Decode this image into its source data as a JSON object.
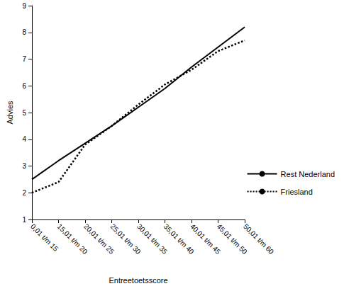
{
  "chart_data": {
    "type": "line",
    "x_label": "Entreetoetsscore",
    "y_label": "Advies",
    "categories": [
      "0,01 t/m 15",
      "15,01 t/m 20",
      "20,01 t/m 25",
      "25,01 t/m 30",
      "30,01 t/m 35",
      "35,01 t/m 40",
      "40,01 t/m 45",
      "45,01 t/m 50",
      "50,01 t/m 60"
    ],
    "series": [
      {
        "name": "Rest Nederland",
        "color": "#000000",
        "line_style": "solid",
        "values": [
          2.5,
          3.2,
          3.85,
          4.5,
          5.2,
          5.9,
          6.7,
          7.45,
          8.2
        ]
      },
      {
        "name": "Friesland",
        "color": "#000000",
        "line_style": "dotted",
        "values": [
          2.0,
          2.4,
          3.8,
          4.5,
          5.3,
          6.05,
          6.6,
          7.3,
          7.7
        ]
      }
    ],
    "ylim": [
      1,
      9
    ],
    "yticks": [
      1,
      2,
      3,
      4,
      5,
      6,
      7,
      8,
      9
    ],
    "grid": false,
    "legend": "right"
  }
}
